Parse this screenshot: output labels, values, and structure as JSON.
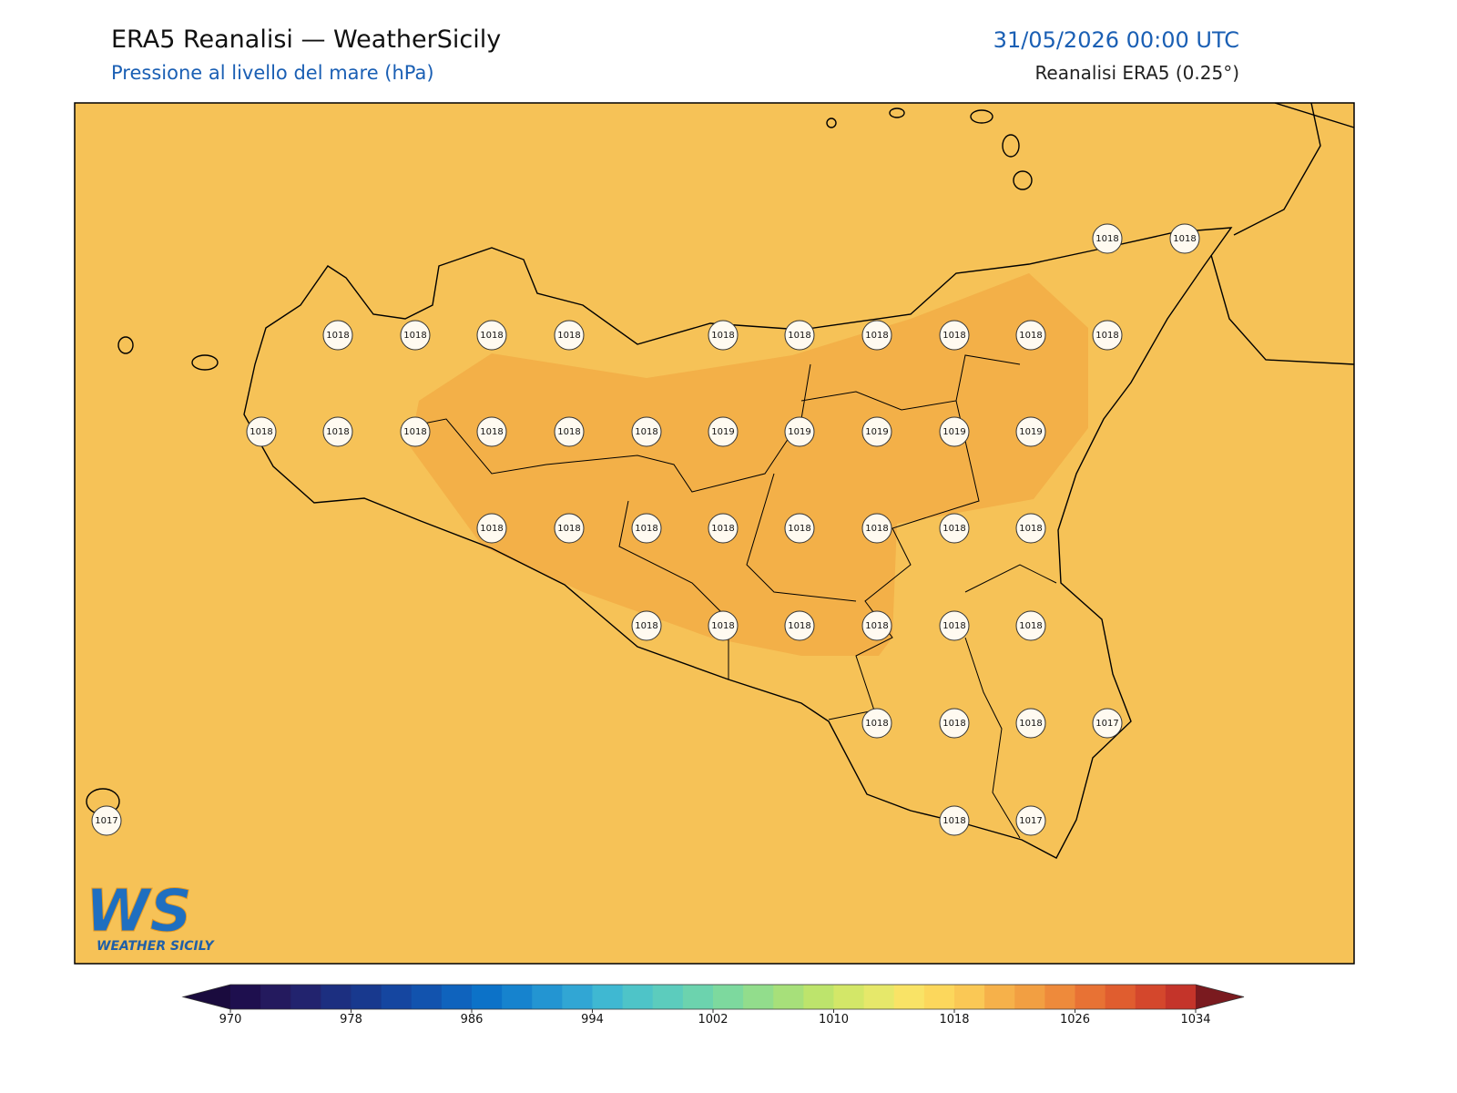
{
  "header": {
    "title": "ERA5 Reanalisi — WeatherSicily",
    "subtitle": "Pressione al livello del mare (hPa)",
    "date": "31/05/2026 00:00 UTC",
    "source": "Reanalisi ERA5 (0.25°)"
  },
  "map": {
    "background": "#f6c257",
    "high_area_color": "#f3b048",
    "stations": [
      1018,
      1018,
      1018,
      1018,
      1018,
      1018,
      1018,
      1018,
      1018,
      1018,
      1018,
      1018,
      1018,
      1018,
      1018,
      1018,
      1018,
      1018,
      1019,
      1019,
      1019,
      1019,
      1019,
      1018,
      1018,
      1018,
      1018,
      1018,
      1018,
      1018,
      1018,
      1018,
      1018,
      1018,
      1018,
      1018,
      1018,
      1018,
      1018,
      1018,
      1017,
      1017,
      1018,
      1017
    ]
  },
  "logo": {
    "mark": "WS",
    "text": "WEATHER SICILY"
  },
  "colorbar": {
    "ticks": [
      970,
      978,
      986,
      994,
      1002,
      1010,
      1018,
      1026,
      1034
    ],
    "colors": [
      "#1e0f4e",
      "#241a5e",
      "#22236e",
      "#1c2f80",
      "#18398e",
      "#1546a0",
      "#1253ae",
      "#0f63bd",
      "#0c72c8",
      "#1683ce",
      "#2395d2",
      "#31a6d4",
      "#3fb8d2",
      "#4ec4c8",
      "#5cccbd",
      "#6cd3ae",
      "#7dd99e",
      "#92dd8c",
      "#a7e07a",
      "#bde46c",
      "#d3e768",
      "#e6e86a",
      "#f9e366",
      "#fcd75c",
      "#fac855",
      "#f6b14a",
      "#f29f42",
      "#ee8a3b",
      "#e87234",
      "#e05d2f",
      "#d4472c",
      "#c4342a"
    ],
    "under_color": "#1a0b3e",
    "over_color": "#7a1a1f"
  }
}
